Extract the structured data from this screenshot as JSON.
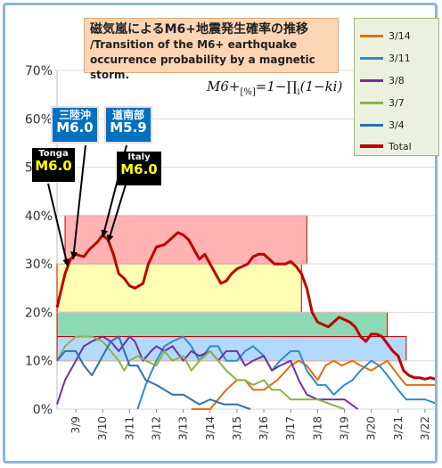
{
  "title_jp": "磁気嵐によるM6+地震発生確率の推移",
  "title_en_1": "/Transition of the M6+ earthquake",
  "title_en_2": "occurrence probability by a magnetic storm.",
  "formula": {
    "lhs": "M6+",
    "sub": "[%]",
    "rhs": "=1−∏",
    "i": "i",
    "tail": "(1−ki)"
  },
  "legend": [
    {
      "label": "3/14",
      "color": "#e46c0a"
    },
    {
      "label": "3/11",
      "color": "#2e8bc7"
    },
    {
      "label": "3/8",
      "color": "#7030a0"
    },
    {
      "label": "3/7",
      "color": "#8cb346"
    },
    {
      "label": "3/4",
      "color": "#2a6fb0"
    },
    {
      "label": "Total",
      "color": "#c00000"
    }
  ],
  "annotations": {
    "tonga": {
      "label": "Tonga",
      "mag": "M6.0"
    },
    "sanriku": {
      "label": "三陸沖",
      "mag": "M6.0"
    },
    "doto": {
      "label": "道南部",
      "mag": "M5.9"
    },
    "italy": {
      "label": "Italy",
      "mag": "M6.0"
    }
  },
  "chart_data": {
    "type": "line",
    "title": "磁気嵐によるM6+地震発生確率の推移 /Transition of the M6+ earthquake occurrence probability by a magnetic storm.",
    "x_ticks": [
      "3/9",
      "3/10",
      "3/11",
      "3/12",
      "3/13",
      "3/14",
      "3/15",
      "3/16",
      "3/17",
      "3/18",
      "3/19",
      "3/20",
      "3/21",
      "3/22"
    ],
    "xlim": [
      8.3,
      22.5
    ],
    "ylim": [
      0,
      70
    ],
    "y_ticks": [
      "0%",
      "10%",
      "20%",
      "30%",
      "40%",
      "50%",
      "60%",
      "70%"
    ],
    "y_unit": "%",
    "grid": true,
    "bands": [
      {
        "x": [
          8.6,
          17.6
        ],
        "y": [
          30,
          40
        ],
        "color": "#ff9999"
      },
      {
        "x": [
          8.3,
          17.4
        ],
        "y": [
          20,
          30
        ],
        "color": "#ffff99"
      },
      {
        "x": [
          8.3,
          20.6
        ],
        "y": [
          15,
          20
        ],
        "color": "#66cc99"
      },
      {
        "x": [
          8.3,
          21.3
        ],
        "y": [
          10,
          15
        ],
        "color": "#99ccff"
      }
    ],
    "series": [
      {
        "name": "Total",
        "color": "#c00000",
        "width": 3,
        "points": [
          [
            8.3,
            21
          ],
          [
            8.6,
            28
          ],
          [
            8.8,
            31
          ],
          [
            9.0,
            32
          ],
          [
            9.3,
            31.5
          ],
          [
            9.5,
            33
          ],
          [
            9.8,
            34.5
          ],
          [
            10.0,
            36
          ],
          [
            10.2,
            35
          ],
          [
            10.4,
            32
          ],
          [
            10.6,
            28
          ],
          [
            10.8,
            27
          ],
          [
            11.0,
            25.5
          ],
          [
            11.2,
            25
          ],
          [
            11.5,
            26
          ],
          [
            11.7,
            30
          ],
          [
            12.0,
            33.5
          ],
          [
            12.3,
            34
          ],
          [
            12.5,
            35
          ],
          [
            12.8,
            36.5
          ],
          [
            13.0,
            36
          ],
          [
            13.2,
            35
          ],
          [
            13.4,
            33
          ],
          [
            13.6,
            31
          ],
          [
            13.8,
            32
          ],
          [
            14.0,
            30
          ],
          [
            14.2,
            28
          ],
          [
            14.4,
            26
          ],
          [
            14.6,
            26.5
          ],
          [
            14.8,
            28
          ],
          [
            15.0,
            29
          ],
          [
            15.2,
            29.5
          ],
          [
            15.4,
            30
          ],
          [
            15.6,
            31.5
          ],
          [
            15.8,
            32
          ],
          [
            16.0,
            32
          ],
          [
            16.2,
            31
          ],
          [
            16.4,
            30
          ],
          [
            16.6,
            30
          ],
          [
            16.8,
            30
          ],
          [
            17.0,
            30.5
          ],
          [
            17.2,
            29.5
          ],
          [
            17.4,
            28
          ],
          [
            17.6,
            25
          ],
          [
            17.8,
            20
          ],
          [
            18.0,
            18
          ],
          [
            18.2,
            17.5
          ],
          [
            18.4,
            17
          ],
          [
            18.6,
            18
          ],
          [
            18.8,
            19
          ],
          [
            19.0,
            18.5
          ],
          [
            19.2,
            18
          ],
          [
            19.4,
            17
          ],
          [
            19.6,
            15
          ],
          [
            19.8,
            14
          ],
          [
            20.0,
            15.5
          ],
          [
            20.2,
            15.5
          ],
          [
            20.4,
            15
          ],
          [
            20.6,
            13.5
          ],
          [
            20.8,
            12
          ],
          [
            21.0,
            11
          ],
          [
            21.2,
            8
          ],
          [
            21.4,
            7
          ],
          [
            21.6,
            6.5
          ],
          [
            21.8,
            6.5
          ],
          [
            22.0,
            6.2
          ],
          [
            22.2,
            6.5
          ],
          [
            22.5,
            6
          ]
        ]
      },
      {
        "name": "3/14",
        "color": "#e46c0a",
        "width": 2,
        "points": [
          [
            13.3,
            0
          ],
          [
            14.0,
            0
          ],
          [
            14.3,
            2
          ],
          [
            14.6,
            4
          ],
          [
            15.0,
            6
          ],
          [
            15.3,
            6
          ],
          [
            15.6,
            4
          ],
          [
            16.0,
            4
          ],
          [
            16.5,
            6
          ],
          [
            17.0,
            9
          ],
          [
            17.3,
            10
          ],
          [
            17.6,
            9
          ],
          [
            18.0,
            6
          ],
          [
            18.3,
            9
          ],
          [
            18.6,
            10
          ],
          [
            18.9,
            9
          ],
          [
            19.3,
            10
          ],
          [
            19.6,
            9
          ],
          [
            20.0,
            8
          ],
          [
            20.3,
            9
          ],
          [
            20.6,
            10
          ],
          [
            21.0,
            7
          ],
          [
            21.3,
            5
          ],
          [
            21.6,
            5
          ],
          [
            22.0,
            5
          ],
          [
            22.5,
            5
          ]
        ]
      },
      {
        "name": "3/11",
        "color": "#2e8bc7",
        "width": 2,
        "points": [
          [
            11.3,
            0
          ],
          [
            11.6,
            5
          ],
          [
            12.0,
            10
          ],
          [
            12.3,
            13
          ],
          [
            12.6,
            14
          ],
          [
            13.0,
            15
          ],
          [
            13.3,
            13
          ],
          [
            13.6,
            10
          ],
          [
            14.0,
            13
          ],
          [
            14.3,
            13
          ],
          [
            14.6,
            10
          ],
          [
            15.0,
            10
          ],
          [
            15.3,
            12
          ],
          [
            15.6,
            13
          ],
          [
            16.0,
            11
          ],
          [
            16.3,
            8
          ],
          [
            16.6,
            10
          ],
          [
            17.0,
            12
          ],
          [
            17.3,
            12
          ],
          [
            17.6,
            8
          ],
          [
            18.0,
            5
          ],
          [
            18.3,
            5
          ],
          [
            18.6,
            3
          ],
          [
            19.0,
            5
          ],
          [
            19.3,
            6
          ],
          [
            19.6,
            8
          ],
          [
            20.0,
            10
          ],
          [
            20.3,
            9
          ],
          [
            20.6,
            7
          ],
          [
            21.0,
            4
          ],
          [
            21.3,
            2
          ],
          [
            21.6,
            2
          ],
          [
            22.0,
            2
          ],
          [
            22.5,
            1
          ]
        ]
      },
      {
        "name": "3/8",
        "color": "#7030a0",
        "width": 2,
        "points": [
          [
            8.3,
            1
          ],
          [
            8.6,
            6
          ],
          [
            9.0,
            10
          ],
          [
            9.3,
            13
          ],
          [
            9.6,
            14
          ],
          [
            10.0,
            15
          ],
          [
            10.3,
            14
          ],
          [
            10.6,
            12
          ],
          [
            11.0,
            15
          ],
          [
            11.2,
            14
          ],
          [
            11.5,
            10
          ],
          [
            11.8,
            12
          ],
          [
            12.0,
            13
          ],
          [
            12.3,
            12
          ],
          [
            12.6,
            13
          ],
          [
            13.0,
            10
          ],
          [
            13.3,
            12
          ],
          [
            13.6,
            11
          ],
          [
            14.0,
            12
          ],
          [
            14.3,
            10
          ],
          [
            14.6,
            12
          ],
          [
            15.0,
            12
          ],
          [
            15.3,
            9
          ],
          [
            15.6,
            10
          ],
          [
            16.0,
            11
          ],
          [
            16.3,
            8
          ],
          [
            16.6,
            9
          ],
          [
            17.0,
            10
          ],
          [
            17.3,
            6
          ],
          [
            17.6,
            3
          ],
          [
            18.0,
            2
          ],
          [
            18.5,
            2
          ],
          [
            19.0,
            2
          ],
          [
            19.5,
            0
          ]
        ]
      },
      {
        "name": "3/7",
        "color": "#8cb346",
        "width": 2,
        "points": [
          [
            8.3,
            10
          ],
          [
            8.6,
            13
          ],
          [
            9.0,
            15
          ],
          [
            9.3,
            15
          ],
          [
            9.6,
            15
          ],
          [
            10.0,
            14
          ],
          [
            10.3,
            12
          ],
          [
            10.6,
            10
          ],
          [
            10.8,
            8
          ],
          [
            11.0,
            10
          ],
          [
            11.3,
            11
          ],
          [
            11.6,
            10
          ],
          [
            12.0,
            9
          ],
          [
            12.3,
            12
          ],
          [
            12.6,
            10
          ],
          [
            13.0,
            11
          ],
          [
            13.3,
            8
          ],
          [
            13.6,
            10
          ],
          [
            14.0,
            12
          ],
          [
            14.3,
            10
          ],
          [
            14.6,
            8
          ],
          [
            15.0,
            6
          ],
          [
            15.3,
            6
          ],
          [
            15.6,
            5
          ],
          [
            16.0,
            6
          ],
          [
            16.3,
            4
          ],
          [
            16.6,
            4
          ],
          [
            17.0,
            2
          ],
          [
            17.5,
            2
          ],
          [
            18.0,
            2
          ],
          [
            18.5,
            1
          ],
          [
            19.0,
            0
          ]
        ]
      },
      {
        "name": "3/4",
        "color": "#2a6fb0",
        "width": 2,
        "points": [
          [
            8.3,
            10
          ],
          [
            8.6,
            12
          ],
          [
            9.0,
            12
          ],
          [
            9.3,
            9
          ],
          [
            9.6,
            7
          ],
          [
            10.0,
            11
          ],
          [
            10.3,
            14
          ],
          [
            10.6,
            15
          ],
          [
            10.8,
            12
          ],
          [
            11.0,
            9
          ],
          [
            11.3,
            9
          ],
          [
            11.6,
            6
          ],
          [
            12.0,
            5
          ],
          [
            12.3,
            4
          ],
          [
            12.6,
            3
          ],
          [
            13.0,
            3
          ],
          [
            13.3,
            2
          ],
          [
            13.6,
            1
          ],
          [
            14.0,
            2
          ],
          [
            14.5,
            1
          ],
          [
            15.0,
            1
          ],
          [
            15.5,
            0
          ]
        ]
      }
    ]
  }
}
